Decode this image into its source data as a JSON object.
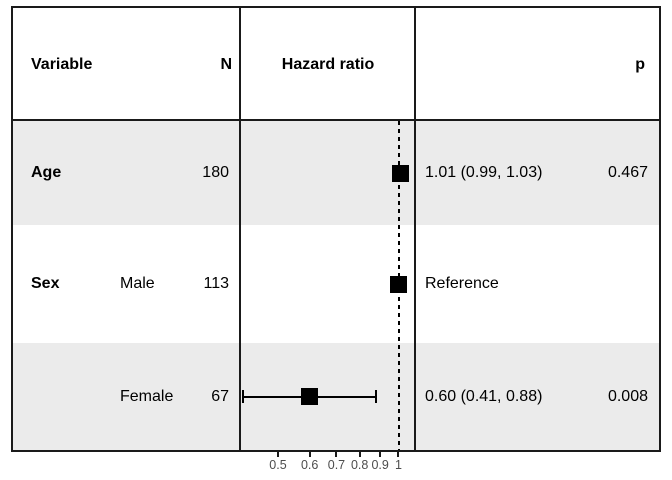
{
  "figure": {
    "header": {
      "variable": "Variable",
      "n": "N",
      "plot": "Hazard ratio",
      "p": "p"
    }
  },
  "chart_data": {
    "type": "scatter",
    "variant": "forest-plot",
    "title": "Hazard ratio",
    "x_scale": "log",
    "x_ticks": [
      0.5,
      0.6,
      0.7,
      0.8,
      0.9,
      1
    ],
    "x_tick_labels": [
      "0.5",
      "0.6",
      "0.7",
      "0.8",
      "0.9",
      "1"
    ],
    "x_range": [
      0.403,
      1.103
    ],
    "reference_line_x": 1,
    "legend": null,
    "grid": false,
    "rows": [
      {
        "variable": "Age",
        "level": "",
        "n": "180",
        "hr": 1.01,
        "ci_low": 0.99,
        "ci_high": 1.03,
        "estimate_label": "1.01 (0.99, 1.03)",
        "p": "0.467",
        "shaded": true
      },
      {
        "variable": "Sex",
        "level": "Male",
        "n": "113",
        "hr": 1.0,
        "ci_low": null,
        "ci_high": null,
        "estimate_label": "Reference",
        "p": "",
        "shaded": false
      },
      {
        "variable": "",
        "level": "Female",
        "n": "67",
        "hr": 0.6,
        "ci_low": 0.41,
        "ci_high": 0.88,
        "estimate_label": "0.60 (0.41, 0.88)",
        "p": "0.008",
        "shaded": true
      }
    ]
  },
  "colors": {
    "stripe": "#ebebeb",
    "marker": "#000000",
    "border": "#1a1a1a",
    "axis_text": "#4d4d4d"
  }
}
